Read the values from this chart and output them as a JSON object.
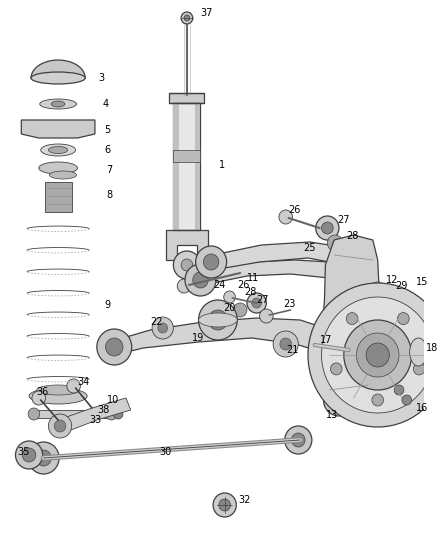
{
  "background_color": "#ffffff",
  "line_color": "#404040",
  "label_color": "#000000",
  "fig_w": 4.38,
  "fig_h": 5.33,
  "dpi": 100
}
